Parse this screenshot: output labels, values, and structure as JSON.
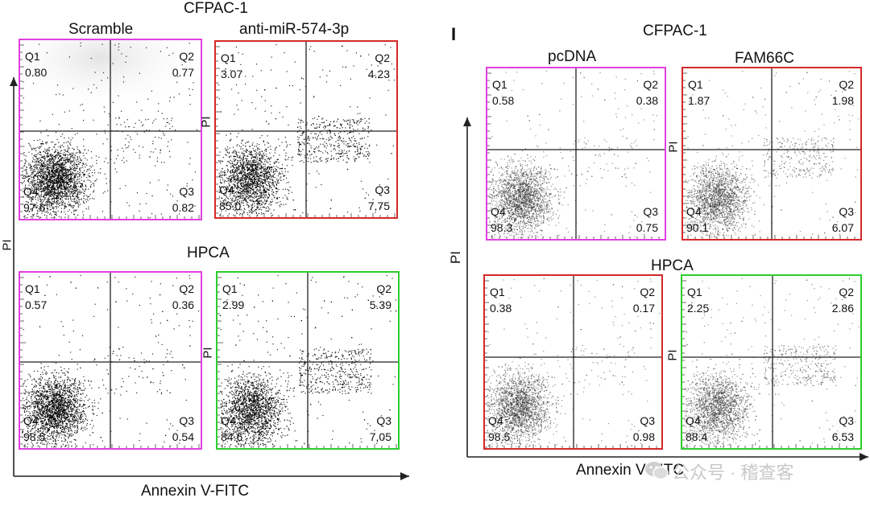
{
  "left_figure": {
    "title": "CFPAC-1",
    "section2_title": "HPCA",
    "x_axis_label": "Annexin V-FITC",
    "y_axis_label": "PI",
    "row1": [
      {
        "condition": "Scramble",
        "frame_color": "#e040e0",
        "side_label": "",
        "q1_name": "Q1",
        "q1": "0.80",
        "q2_name": "Q2",
        "q2": "0.77",
        "q3_name": "Q3",
        "q3": "0.82",
        "q4_name": "Q4",
        "q4": "97.6"
      },
      {
        "condition": "anti-miR-574-3p",
        "frame_color": "#d62828",
        "side_label": "PI",
        "q1_name": "Q1",
        "q1": "3.07",
        "q2_name": "Q2",
        "q2": "4.23",
        "q3_name": "Q3",
        "q3": "7.75",
        "q4_name": "Q4",
        "q4": "85.0"
      }
    ],
    "row2": [
      {
        "condition": "",
        "frame_color": "#e040e0",
        "side_label": "",
        "q1_name": "Q1",
        "q1": "0.57",
        "q2_name": "Q2",
        "q2": "0.36",
        "q3_name": "Q3",
        "q3": "0.54",
        "q4_name": "Q4",
        "q4": "98.5"
      },
      {
        "condition": "",
        "frame_color": "#2ecc2e",
        "side_label": "PI",
        "q1_name": "Q1",
        "q1": "2.99",
        "q2_name": "Q2",
        "q2": "5.39",
        "q3_name": "Q3",
        "q3": "7.05",
        "q4_name": "Q4",
        "q4": "84.6"
      }
    ]
  },
  "right_figure": {
    "panel_letter": "I",
    "title": "CFPAC-1",
    "section2_title": "HPCA",
    "x_axis_label": "Annexin V-FITC",
    "y_axis_label": "PI",
    "row1": [
      {
        "condition": "pcDNA",
        "frame_color": "#e040e0",
        "side_label": "",
        "q1_name": "Q1",
        "q1": "0.58",
        "q2_name": "Q2",
        "q2": "0.38",
        "q3_name": "Q3",
        "q3": "0.75",
        "q4_name": "Q4",
        "q4": "98.3"
      },
      {
        "condition": "FAM66C",
        "frame_color": "#d62828",
        "side_label": "PI",
        "q1_name": "Q1",
        "q1": "1.87",
        "q2_name": "Q2",
        "q2": "1.98",
        "q3_name": "Q3",
        "q3": "6.07",
        "q4_name": "Q4",
        "q4": "90.1"
      }
    ],
    "row2": [
      {
        "condition": "",
        "frame_color": "#d62828",
        "side_label": "",
        "q1_name": "Q1",
        "q1": "0.38",
        "q2_name": "Q2",
        "q2": "0.17",
        "q3_name": "Q3",
        "q3": "0.98",
        "q4_name": "Q4",
        "q4": "98.5"
      },
      {
        "condition": "",
        "frame_color": "#2ecc2e",
        "side_label": "PI",
        "q1_name": "Q1",
        "q1": "2.25",
        "q2_name": "Q2",
        "q2": "2.86",
        "q3_name": "Q3",
        "q3": "6.53",
        "q4_name": "Q4",
        "q4": "88.4"
      }
    ]
  },
  "watermark": {
    "text": "公众号 · 稽查客",
    "icon": "wechat-icon"
  }
}
